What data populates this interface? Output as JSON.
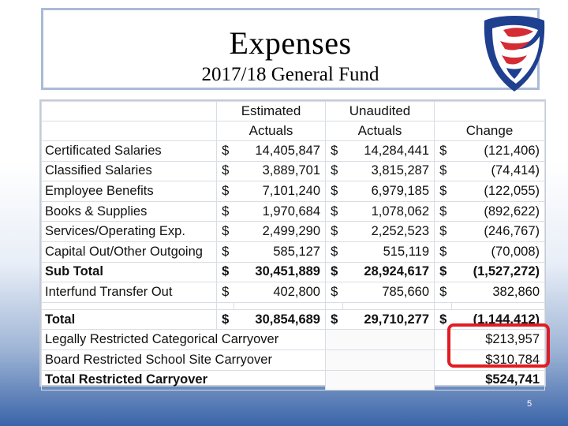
{
  "slide": {
    "title": "Expenses",
    "subtitle": "2017/18 General Fund",
    "page_number": "5"
  },
  "table": {
    "header": {
      "row1": [
        "",
        "Estimated",
        "Unaudited",
        ""
      ],
      "row2": [
        "",
        "Actuals",
        "Actuals",
        "Change"
      ]
    },
    "rows": [
      {
        "label": "Certificated Salaries",
        "est": "14,405,847",
        "unaud": "14,284,441",
        "change": "(121,406)",
        "dollar": true
      },
      {
        "label": "Classified Salaries",
        "est": "3,889,701",
        "unaud": "3,815,287",
        "change": "(74,414)",
        "dollar": true
      },
      {
        "label": "Employee Benefits",
        "est": "7,101,240",
        "unaud": "6,979,185",
        "change": "(122,055)",
        "dollar": true
      },
      {
        "label": "Books & Supplies",
        "est": "1,970,684",
        "unaud": "1,078,062",
        "change": "(892,622)",
        "dollar": true
      },
      {
        "label": "Services/Operating Exp.",
        "est": "2,499,290",
        "unaud": "2,252,523",
        "change": "(246,767)",
        "dollar": true
      },
      {
        "label": "Capital Out/Other Outgoing",
        "est": "585,127",
        "unaud": "515,119",
        "change": "(70,008)",
        "dollar": true
      },
      {
        "label": "Sub Total",
        "est": "30,451,889",
        "unaud": "28,924,617",
        "change": "(1,527,272)",
        "dollar": true,
        "bold": true
      },
      {
        "label": "Interfund Transfer Out",
        "est": "402,800",
        "unaud": "785,660",
        "change": "382,860",
        "dollar": true
      }
    ],
    "total": {
      "label": "Total",
      "est": "30,854,689",
      "unaud": "29,710,277",
      "change": "(1,144,412)"
    },
    "carryover": [
      {
        "label": "Legally Restricted Categorical Carryover",
        "change": "$213,957"
      },
      {
        "label": "Board Restricted School Site Carryover",
        "change": "$310,784"
      },
      {
        "label": "Total Restricted Carryover",
        "change": "$524,741",
        "bold": true
      }
    ],
    "dollar_sign": "$"
  },
  "colors": {
    "highlight": "#e21b23",
    "logo_red": "#d52b32",
    "logo_blue": "#1f3f8f"
  },
  "icons": {
    "logo": "eagle-shield-logo",
    "highlight": "red-rounded-rectangle"
  }
}
